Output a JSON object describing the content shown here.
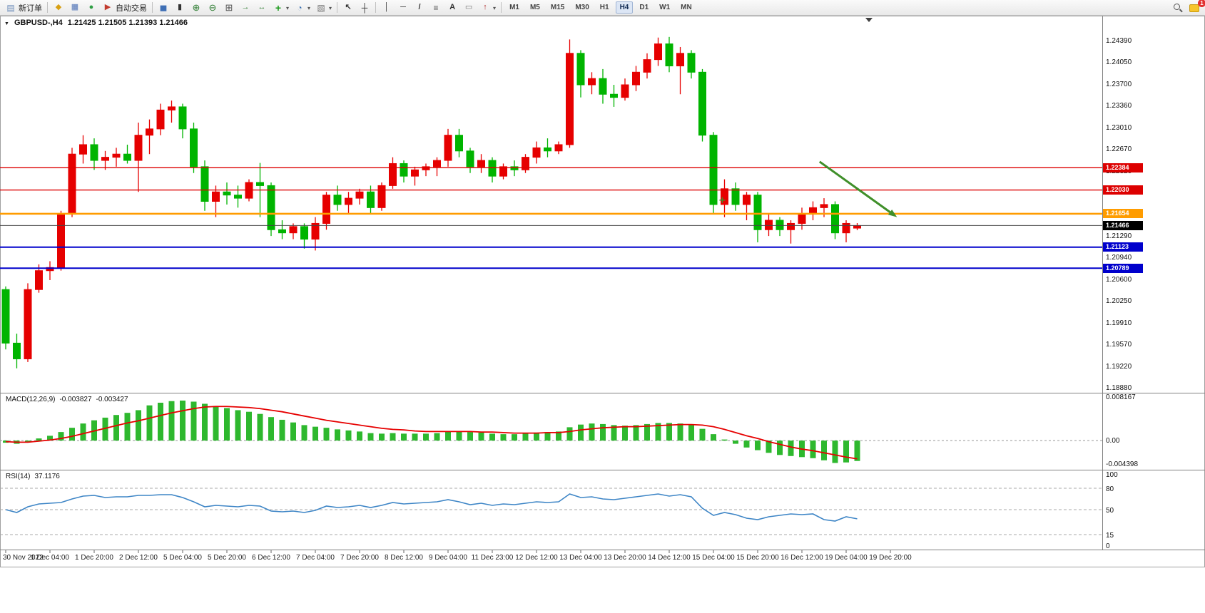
{
  "toolbar": {
    "items": [
      {
        "kind": "button",
        "name": "new-order",
        "icon": "new-order",
        "label": "新订单"
      },
      {
        "kind": "sep"
      },
      {
        "kind": "iconbtn",
        "name": "profiles",
        "icon": "profiles"
      },
      {
        "kind": "iconbtn",
        "name": "data-window",
        "icon": "data-window"
      },
      {
        "kind": "iconbtn",
        "name": "navigator",
        "icon": "navigator"
      },
      {
        "kind": "button",
        "name": "autotrading",
        "icon": "autotrading",
        "label": "自动交易"
      },
      {
        "kind": "sep"
      },
      {
        "kind": "iconbtn",
        "name": "bar-chart",
        "icon": "bar-chart"
      },
      {
        "kind": "iconbtn",
        "name": "candle-chart",
        "icon": "candle-chart"
      },
      {
        "kind": "iconbtn",
        "name": "zoom-in",
        "icon": "zoom-in"
      },
      {
        "kind": "iconbtn",
        "name": "zoom-out",
        "icon": "zoom-out"
      },
      {
        "kind": "iconbtn",
        "name": "tile-windows",
        "icon": "tile-windows"
      },
      {
        "kind": "iconbtn",
        "name": "auto-scroll",
        "icon": "auto-scroll"
      },
      {
        "kind": "iconbtn",
        "name": "chart-shift",
        "icon": "chart-shift"
      },
      {
        "kind": "iconbtn",
        "name": "new-chart",
        "icon": "new-chart",
        "caret": true
      },
      {
        "kind": "iconbtn",
        "name": "periods",
        "icon": "periods",
        "caret": true
      },
      {
        "kind": "iconbtn",
        "name": "templates",
        "icon": "templates",
        "caret": true
      },
      {
        "kind": "sep"
      },
      {
        "kind": "iconbtn",
        "name": "cursor",
        "icon": "cursor"
      },
      {
        "kind": "iconbtn",
        "name": "crosshair",
        "icon": "crosshair"
      },
      {
        "kind": "sep"
      },
      {
        "kind": "iconbtn",
        "name": "vertical-line",
        "icon": "vline"
      },
      {
        "kind": "iconbtn",
        "name": "horizontal-line",
        "icon": "hline"
      },
      {
        "kind": "iconbtn",
        "name": "trendline",
        "icon": "tline"
      },
      {
        "kind": "iconbtn",
        "name": "fibonacci",
        "icon": "fibo"
      },
      {
        "kind": "iconbtn",
        "name": "text",
        "icon": "text"
      },
      {
        "kind": "iconbtn",
        "name": "text-label",
        "icon": "label"
      },
      {
        "kind": "iconbtn",
        "name": "arrows",
        "icon": "arrow",
        "caret": true
      },
      {
        "kind": "sep"
      },
      {
        "kind": "timeframes"
      },
      {
        "kind": "spacer"
      },
      {
        "kind": "iconbtn",
        "name": "search",
        "icon": "search"
      },
      {
        "kind": "iconbtn",
        "name": "notifications",
        "icon": "chat",
        "badge": "1"
      }
    ],
    "timeframes": [
      {
        "label": "M1",
        "active": false
      },
      {
        "label": "M5",
        "active": false
      },
      {
        "label": "M15",
        "active": false
      },
      {
        "label": "M30",
        "active": false
      },
      {
        "label": "H1",
        "active": false
      },
      {
        "label": "H4",
        "active": true
      },
      {
        "label": "D1",
        "active": false
      },
      {
        "label": "W1",
        "active": false
      },
      {
        "label": "MN",
        "active": false
      }
    ]
  },
  "chart": {
    "symbol_label": "GBPUSD-,H4",
    "ohlc_label": "1.21425 1.21505 1.21393 1.21466",
    "y_axis_labels": [
      "1.24390",
      "1.24050",
      "1.23700",
      "1.23360",
      "1.23010",
      "1.22670",
      "1.22320",
      "1.21980",
      "1.21630",
      "1.21290",
      "1.20940",
      "1.20600",
      "1.20250",
      "1.19910",
      "1.19570",
      "1.19220",
      "1.18880"
    ],
    "time_labels": [
      "30 Nov 2022",
      "1 Dec 04:00",
      "1 Dec 20:00",
      "2 Dec 12:00",
      "5 Dec 04:00",
      "5 Dec 20:00",
      "6 Dec 12:00",
      "7 Dec 04:00",
      "7 Dec 20:00",
      "8 Dec 12:00",
      "9 Dec 04:00",
      "11 Dec 23:00",
      "12 Dec 12:00",
      "13 Dec 04:00",
      "13 Dec 20:00",
      "14 Dec 12:00",
      "15 Dec 04:00",
      "15 Dec 20:00",
      "16 Dec 12:00",
      "19 Dec 04:00",
      "19 Dec 20:00"
    ]
  },
  "macd": {
    "title": "MACD(12,26,9)",
    "value_main": "-0.003827",
    "value_signal": "-0.003427",
    "scale_labels": [
      "0.008167",
      "0.00",
      "-0.004398"
    ],
    "scale_values": [
      0.008167,
      0,
      -0.004398
    ]
  },
  "rsi": {
    "title": "RSI(14)",
    "value": "37.1176",
    "scale_labels": [
      "100",
      "80",
      "50",
      "15",
      "0"
    ],
    "scale_values": [
      100,
      80,
      50,
      15,
      0
    ]
  },
  "chart_data": [
    {
      "type": "candlestick",
      "symbol": "GBPUSD-",
      "timeframe": "H4",
      "ylim": [
        1.1888,
        1.2439
      ],
      "bull_color": "#e60000",
      "bear_color": "#00b400",
      "current": {
        "open": 1.21425,
        "high": 1.21505,
        "low": 1.21393,
        "close": 1.21466
      },
      "candles": [
        [
          1.2045,
          1.205,
          1.195,
          1.196
        ],
        [
          1.196,
          1.1975,
          1.192,
          1.1935
        ],
        [
          1.1935,
          1.2055,
          1.193,
          1.2045
        ],
        [
          1.2045,
          1.2085,
          1.204,
          1.2075
        ],
        [
          1.2075,
          1.209,
          1.206,
          1.208
        ],
        [
          1.208,
          1.217,
          1.2075,
          1.2165
        ],
        [
          1.2165,
          1.227,
          1.216,
          1.226
        ],
        [
          1.226,
          1.229,
          1.2245,
          1.2275
        ],
        [
          1.2275,
          1.2285,
          1.2235,
          1.225
        ],
        [
          1.225,
          1.2265,
          1.2235,
          1.2255
        ],
        [
          1.2255,
          1.227,
          1.224,
          1.226
        ],
        [
          1.226,
          1.2275,
          1.2245,
          1.225
        ],
        [
          1.225,
          1.231,
          1.22,
          1.229
        ],
        [
          1.229,
          1.2315,
          1.226,
          1.23
        ],
        [
          1.23,
          1.234,
          1.229,
          1.233
        ],
        [
          1.233,
          1.2345,
          1.231,
          1.2335
        ],
        [
          1.2335,
          1.234,
          1.2285,
          1.23
        ],
        [
          1.23,
          1.231,
          1.223,
          1.224
        ],
        [
          1.224,
          1.225,
          1.217,
          1.2185
        ],
        [
          1.2185,
          1.221,
          1.216,
          1.22
        ],
        [
          1.22,
          1.2215,
          1.218,
          1.2195
        ],
        [
          1.2195,
          1.221,
          1.2175,
          1.219
        ],
        [
          1.219,
          1.222,
          1.2185,
          1.2215
        ],
        [
          1.2215,
          1.2246,
          1.216,
          1.221
        ],
        [
          1.221,
          1.2215,
          1.213,
          1.214
        ],
        [
          1.214,
          1.2155,
          1.2125,
          1.2135
        ],
        [
          1.2135,
          1.215,
          1.2125,
          1.2145
        ],
        [
          1.2145,
          1.215,
          1.211,
          1.2125
        ],
        [
          1.2125,
          1.216,
          1.2107,
          1.215
        ],
        [
          1.215,
          1.22,
          1.214,
          1.2195
        ],
        [
          1.2195,
          1.221,
          1.217,
          1.218
        ],
        [
          1.218,
          1.22,
          1.2165,
          1.219
        ],
        [
          1.219,
          1.2205,
          1.218,
          1.22
        ],
        [
          1.22,
          1.221,
          1.2165,
          1.2175
        ],
        [
          1.2175,
          1.2215,
          1.217,
          1.221
        ],
        [
          1.221,
          1.2255,
          1.2205,
          1.2245
        ],
        [
          1.2245,
          1.225,
          1.2215,
          1.2225
        ],
        [
          1.2225,
          1.224,
          1.221,
          1.2235
        ],
        [
          1.2235,
          1.2245,
          1.2225,
          1.224
        ],
        [
          1.224,
          1.2255,
          1.2225,
          1.225
        ],
        [
          1.225,
          1.23,
          1.224,
          1.229
        ],
        [
          1.229,
          1.23,
          1.2255,
          1.2265
        ],
        [
          1.2265,
          1.227,
          1.223,
          1.224
        ],
        [
          1.224,
          1.226,
          1.223,
          1.225
        ],
        [
          1.225,
          1.2255,
          1.2215,
          1.2225
        ],
        [
          1.2225,
          1.2245,
          1.222,
          1.224
        ],
        [
          1.224,
          1.225,
          1.2225,
          1.2235
        ],
        [
          1.2235,
          1.226,
          1.223,
          1.2255
        ],
        [
          1.2255,
          1.228,
          1.2245,
          1.227
        ],
        [
          1.227,
          1.2285,
          1.2255,
          1.2265
        ],
        [
          1.2265,
          1.228,
          1.226,
          1.2275
        ],
        [
          1.2275,
          1.2442,
          1.227,
          1.242
        ],
        [
          1.242,
          1.2425,
          1.235,
          1.237
        ],
        [
          1.237,
          1.239,
          1.2355,
          1.238
        ],
        [
          1.238,
          1.2395,
          1.234,
          1.2355
        ],
        [
          1.2355,
          1.237,
          1.2335,
          1.235
        ],
        [
          1.235,
          1.238,
          1.2345,
          1.237
        ],
        [
          1.237,
          1.24,
          1.236,
          1.239
        ],
        [
          1.239,
          1.242,
          1.238,
          1.241
        ],
        [
          1.241,
          1.2445,
          1.24,
          1.2435
        ],
        [
          1.2435,
          1.2446,
          1.239,
          1.24
        ],
        [
          1.24,
          1.243,
          1.2355,
          1.242
        ],
        [
          1.242,
          1.2425,
          1.238,
          1.239
        ],
        [
          1.239,
          1.2395,
          1.228,
          1.229
        ],
        [
          1.229,
          1.2295,
          1.2165,
          1.218
        ],
        [
          1.218,
          1.222,
          1.216,
          1.2205
        ],
        [
          1.2205,
          1.2215,
          1.217,
          1.218
        ],
        [
          1.218,
          1.22,
          1.2155,
          1.2195
        ],
        [
          1.2195,
          1.22,
          1.212,
          1.214
        ],
        [
          1.214,
          1.2165,
          1.213,
          1.2155
        ],
        [
          1.2155,
          1.216,
          1.213,
          1.214
        ],
        [
          1.214,
          1.2155,
          1.2118,
          1.215
        ],
        [
          1.215,
          1.2175,
          1.214,
          1.2165
        ],
        [
          1.2165,
          1.2185,
          1.2155,
          1.2175
        ],
        [
          1.2175,
          1.219,
          1.216,
          1.218
        ],
        [
          1.218,
          1.2185,
          1.2125,
          1.2135
        ],
        [
          1.2135,
          1.2155,
          1.212,
          1.215
        ],
        [
          1.21425,
          1.21505,
          1.21393,
          1.21466
        ]
      ],
      "hlines": [
        {
          "price": 1.22384,
          "label": "1.22384",
          "color": "#dd0000",
          "width": 1.4
        },
        {
          "price": 1.2203,
          "label": "1.22030",
          "color": "#dd0000",
          "width": 1.4
        },
        {
          "price": 1.21654,
          "label": "1.21654",
          "color": "#ff9c00",
          "width": 2.5
        },
        {
          "price": 1.21123,
          "label": "1.21123",
          "color": "#0000cc",
          "width": 2
        },
        {
          "price": 1.20789,
          "label": "1.20789",
          "color": "#0000cc",
          "width": 2
        }
      ],
      "bid": {
        "price": 1.21466,
        "label": "1.21466",
        "line_color": "#444444",
        "label_bg": "#000000"
      },
      "annotations": {
        "arrow": {
          "from": {
            "index": 73.6,
            "price": 1.2248
          },
          "to": {
            "index": 80.6,
            "price": 1.216
          },
          "color": "#3f8f29"
        },
        "plus_marker": {
          "index": 64.8,
          "price": 1.2187,
          "color": "#3f8f29"
        }
      }
    },
    {
      "type": "bar",
      "name": "MACD histogram",
      "color": "#2eb82e",
      "ylim": [
        -0.004398,
        0.008167
      ],
      "values": [
        -0.0004,
        -0.0006,
        -0.0002,
        0.0004,
        0.0009,
        0.0016,
        0.0024,
        0.0032,
        0.0038,
        0.0043,
        0.0048,
        0.0052,
        0.0057,
        0.0066,
        0.0071,
        0.0074,
        0.0075,
        0.0073,
        0.0069,
        0.0065,
        0.0061,
        0.0057,
        0.0054,
        0.005,
        0.0044,
        0.0039,
        0.0034,
        0.0029,
        0.0026,
        0.0024,
        0.0021,
        0.0019,
        0.0017,
        0.0014,
        0.0013,
        0.0014,
        0.0013,
        0.0013,
        0.0013,
        0.0014,
        0.0017,
        0.0018,
        0.0016,
        0.0015,
        0.0013,
        0.0012,
        0.0012,
        0.0013,
        0.0015,
        0.0016,
        0.0017,
        0.0025,
        0.003,
        0.0032,
        0.0031,
        0.0029,
        0.0028,
        0.0029,
        0.0031,
        0.0033,
        0.0033,
        0.0032,
        0.0029,
        0.0022,
        0.0012,
        0.0002,
        -0.0006,
        -0.0013,
        -0.0018,
        -0.0023,
        -0.0027,
        -0.0029,
        -0.0031,
        -0.0033,
        -0.0037,
        -0.0042,
        -0.0041,
        -0.003827
      ]
    },
    {
      "type": "line",
      "name": "MACD signal",
      "color": "#e60000",
      "values": [
        -0.0002,
        -0.0003,
        -0.0003,
        -0.0001,
        0.0001,
        0.0004,
        0.0008,
        0.0013,
        0.0018,
        0.0023,
        0.0028,
        0.0033,
        0.0037,
        0.0042,
        0.0047,
        0.0052,
        0.0056,
        0.006,
        0.0063,
        0.0064,
        0.0064,
        0.0063,
        0.0062,
        0.006,
        0.0057,
        0.0054,
        0.005,
        0.0046,
        0.0042,
        0.0038,
        0.0035,
        0.0032,
        0.0029,
        0.0026,
        0.0023,
        0.0021,
        0.002,
        0.0018,
        0.0017,
        0.0017,
        0.0017,
        0.0017,
        0.0017,
        0.0016,
        0.0016,
        0.0015,
        0.0014,
        0.0014,
        0.0014,
        0.0015,
        0.0015,
        0.0017,
        0.002,
        0.0022,
        0.0024,
        0.0025,
        0.0026,
        0.0026,
        0.0027,
        0.0028,
        0.0029,
        0.003,
        0.003,
        0.0029,
        0.0026,
        0.0021,
        0.0015,
        0.0009,
        0.0004,
        -0.0002,
        -0.0007,
        -0.0012,
        -0.0016,
        -0.0019,
        -0.0023,
        -0.0027,
        -0.0031,
        -0.003427
      ]
    },
    {
      "type": "line",
      "name": "RSI(14)",
      "color": "#3d85c6",
      "ylim": [
        0,
        100
      ],
      "levels": [
        80,
        50,
        15
      ],
      "values": [
        50,
        46,
        54,
        58,
        59,
        60,
        65,
        69,
        70,
        67,
        68,
        68,
        70,
        70,
        71,
        71,
        67,
        61,
        54,
        56,
        55,
        54,
        56,
        55,
        48,
        47,
        48,
        46,
        49,
        55,
        53,
        54,
        56,
        53,
        56,
        60,
        58,
        59,
        60,
        61,
        64,
        61,
        57,
        59,
        56,
        58,
        57,
        59,
        61,
        60,
        61,
        72,
        67,
        68,
        65,
        64,
        66,
        68,
        70,
        72,
        69,
        71,
        68,
        52,
        42,
        46,
        43,
        38,
        36,
        40,
        42,
        44,
        43,
        44,
        36,
        34,
        40,
        37.1176
      ]
    }
  ]
}
